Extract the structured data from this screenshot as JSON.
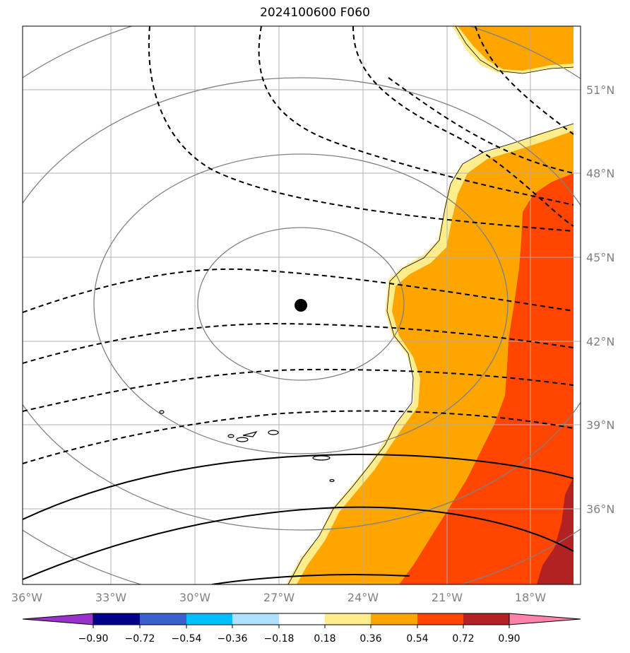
{
  "title": "2024100600 F060",
  "map": {
    "lon_ticks": [
      "36°W",
      "33°W",
      "30°W",
      "27°W",
      "24°W",
      "21°W",
      "18°W"
    ],
    "lat_ticks": [
      "51°N",
      "48°N",
      "45°N",
      "42°N",
      "39°N",
      "36°N"
    ],
    "gridline_color": "#b0b0b0",
    "center_marker": "filled-circle"
  },
  "colorbar": {
    "labels": [
      "−0.90",
      "−0.72",
      "−0.54",
      "−0.36",
      "−0.18",
      "0.18",
      "0.36",
      "0.54",
      "0.72",
      "0.90"
    ],
    "colors": [
      "#9932cc",
      "#00008b",
      "#3a5fcd",
      "#00bfff",
      "#b0e2ff",
      "#ffffff",
      "#ffec8b",
      "#ffa500",
      "#ff4500",
      "#b22222",
      "#ff82ab"
    ]
  }
}
